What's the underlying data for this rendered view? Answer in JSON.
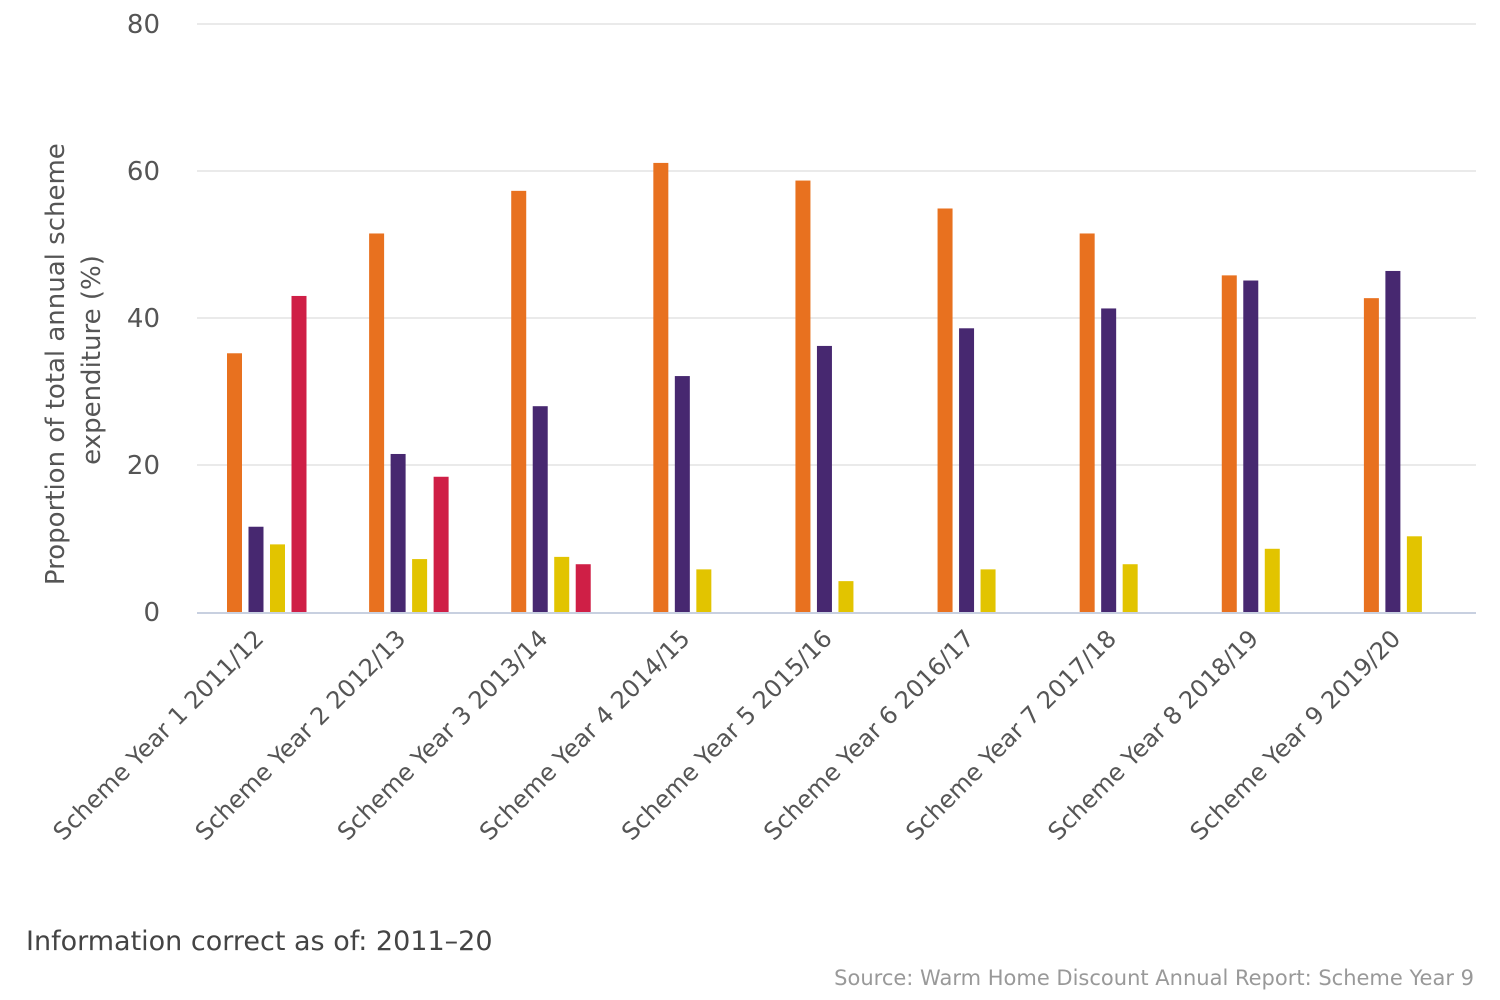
{
  "chart_data": {
    "type": "bar",
    "title": "",
    "xlabel": "",
    "ylabel": "Proportion of total annual scheme expenditure (%)",
    "ylabel_lines": [
      "Proportion of total annual scheme",
      "expenditure (%)"
    ],
    "ylim": [
      0,
      80
    ],
    "yticks": [
      0,
      20,
      40,
      60,
      80
    ],
    "grid": true,
    "legend": "none",
    "categories": [
      "Scheme Year 1 2011/12",
      "Scheme Year 2 2012/13",
      "Scheme Year 3 2013/14",
      "Scheme Year 4 2014/15",
      "Scheme Year 5 2015/16",
      "Scheme Year 6 2016/17",
      "Scheme Year 7 2017/18",
      "Scheme Year 8 2018/19",
      "Scheme Year 9 2019/20"
    ],
    "series": [
      {
        "color": "#e8711f",
        "values": [
          35.2,
          51.5,
          57.3,
          61.1,
          58.7,
          54.9,
          51.5,
          45.8,
          42.7
        ]
      },
      {
        "color": "#472870",
        "values": [
          11.6,
          21.5,
          28.0,
          32.1,
          36.2,
          38.6,
          41.3,
          45.1,
          46.4
        ]
      },
      {
        "color": "#e2c400",
        "values": [
          9.2,
          7.2,
          7.5,
          5.8,
          4.2,
          5.8,
          6.5,
          8.6,
          10.3
        ]
      },
      {
        "color": "#cf1f46",
        "values": [
          43.0,
          18.4,
          6.5,
          null,
          null,
          null,
          null,
          null,
          null
        ]
      }
    ]
  },
  "footnote": "Information correct as of: 2011–20",
  "source": "Source: Warm Home Discount Annual Report: Scheme Year 9"
}
